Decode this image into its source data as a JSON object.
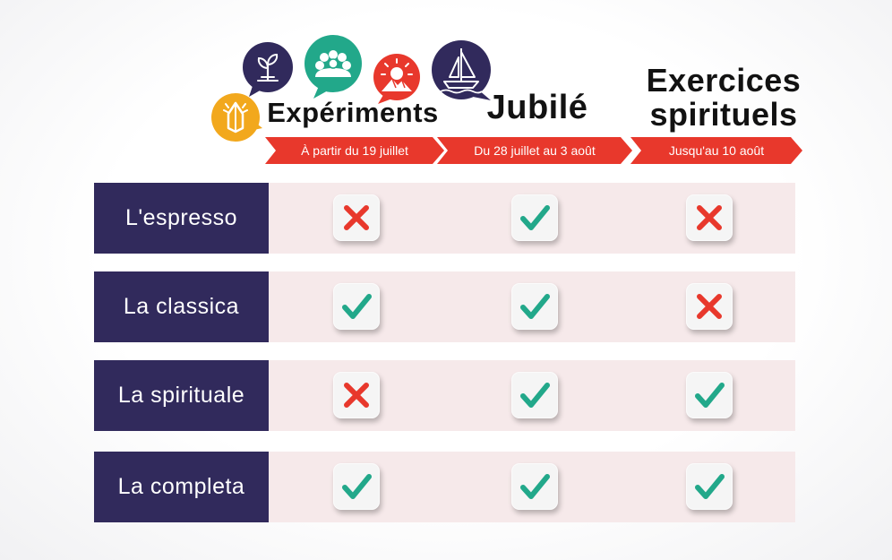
{
  "icons": [
    {
      "name": "praying-hands-icon",
      "color": "#f2a81d"
    },
    {
      "name": "sprout-icon",
      "color": "#312a5c"
    },
    {
      "name": "people-group-icon",
      "color": "#22a88a"
    },
    {
      "name": "sunrise-mountain-icon",
      "color": "#e8382c"
    },
    {
      "name": "sailboat-icon",
      "color": "#312a5c"
    }
  ],
  "columns": [
    {
      "title": "Expériments",
      "subtitle": "À partir du 19 juillet"
    },
    {
      "title": "Jubilé",
      "subtitle": "Du 28 juillet au 3 août"
    },
    {
      "title_line1": "Exercices",
      "title_line2": "spirituels",
      "subtitle": "Jusqu'au 10 août"
    }
  ],
  "rows": [
    {
      "label": "L'espresso",
      "values": [
        "no",
        "yes",
        "no"
      ]
    },
    {
      "label": "La classica",
      "values": [
        "yes",
        "yes",
        "no"
      ]
    },
    {
      "label": "La spirituale",
      "values": [
        "no",
        "yes",
        "yes"
      ]
    },
    {
      "label": "La completa",
      "values": [
        "yes",
        "yes",
        "yes"
      ]
    }
  ],
  "colors": {
    "check": "#22a88a",
    "cross": "#e8382c",
    "label_bg": "#312a5c",
    "ribbon": "#e8382c",
    "row_bg": "#f6e9ea"
  }
}
